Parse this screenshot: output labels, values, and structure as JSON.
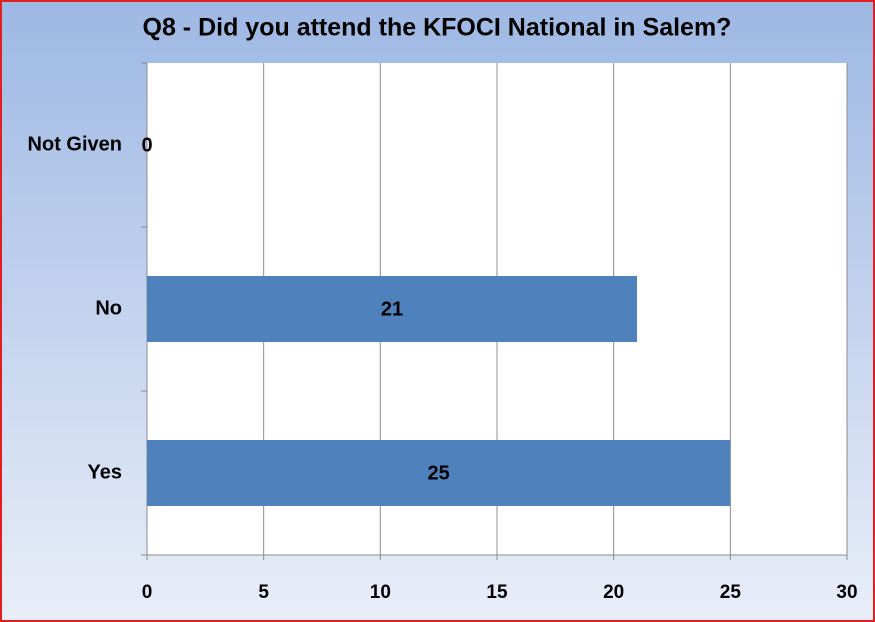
{
  "chart_data": {
    "type": "bar",
    "orientation": "horizontal",
    "title": "Q8 - Did you attend the KFOCI National in Salem?",
    "categories": [
      "Not Given",
      "No",
      "Yes"
    ],
    "values": [
      0,
      21,
      25
    ],
    "color": "#4f81bd",
    "xlim": [
      0,
      30
    ],
    "xticks": [
      0,
      5,
      10,
      15,
      20,
      25,
      30
    ],
    "grid": true
  }
}
